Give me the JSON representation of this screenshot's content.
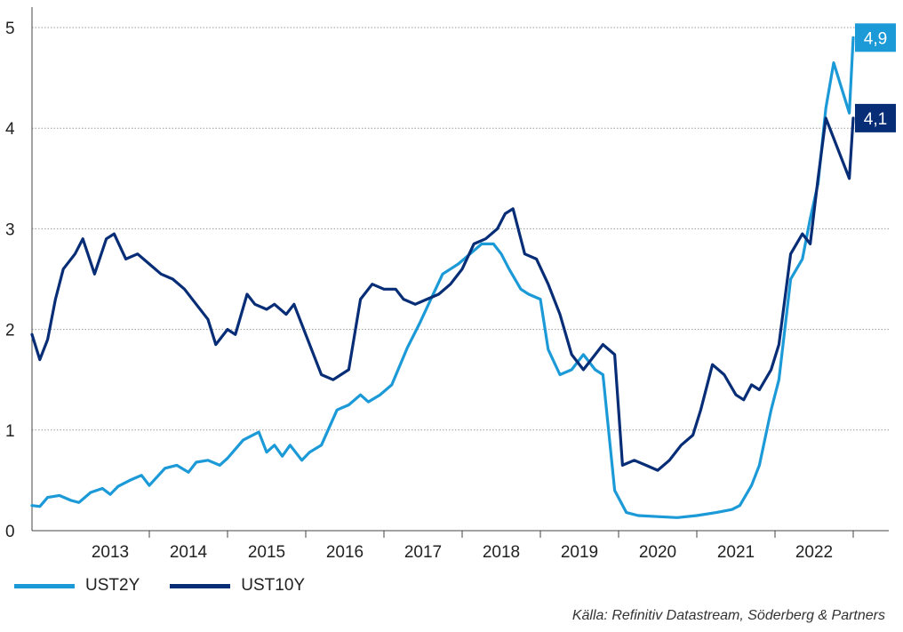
{
  "chart_data": {
    "type": "line",
    "ylim": [
      0,
      5
    ],
    "yticks": [
      "0",
      "1",
      "2",
      "3",
      "4",
      "5"
    ],
    "xticks": [
      "2013",
      "2014",
      "2015",
      "2016",
      "2017",
      "2018",
      "2019",
      "2020",
      "2021",
      "2022"
    ],
    "xlim": [
      2012.5,
      2023.0
    ],
    "grid": "horizontal dotted",
    "legend_position": "bottom-left",
    "series": [
      {
        "name": "UST2Y",
        "color": "#1b9ad7",
        "end_label": "4,9",
        "x": [
          2012.5,
          2012.6,
          2012.7,
          2012.85,
          2013.0,
          2013.1,
          2013.25,
          2013.4,
          2013.5,
          2013.6,
          2013.75,
          2013.9,
          2014.0,
          2014.2,
          2014.35,
          2014.5,
          2014.6,
          2014.75,
          2014.9,
          2015.0,
          2015.2,
          2015.4,
          2015.5,
          2015.6,
          2015.7,
          2015.8,
          2015.95,
          2016.05,
          2016.2,
          2016.4,
          2016.55,
          2016.7,
          2016.8,
          2016.95,
          2017.1,
          2017.3,
          2017.45,
          2017.6,
          2017.75,
          2017.95,
          2018.1,
          2018.25,
          2018.4,
          2018.5,
          2018.6,
          2018.75,
          2018.85,
          2019.0,
          2019.1,
          2019.25,
          2019.4,
          2019.55,
          2019.7,
          2019.8,
          2019.95,
          2020.1,
          2020.25,
          2020.5,
          2020.75,
          2021.0,
          2021.25,
          2021.45,
          2021.55,
          2021.7,
          2021.8,
          2021.95,
          2022.05,
          2022.2,
          2022.35,
          2022.45,
          2022.55,
          2022.65,
          2022.75,
          2022.85,
          2022.95,
          2023.0
        ],
        "values": [
          0.25,
          0.24,
          0.33,
          0.35,
          0.3,
          0.28,
          0.38,
          0.42,
          0.36,
          0.44,
          0.5,
          0.55,
          0.45,
          0.62,
          0.65,
          0.58,
          0.68,
          0.7,
          0.65,
          0.72,
          0.9,
          0.98,
          0.78,
          0.85,
          0.74,
          0.85,
          0.7,
          0.78,
          0.85,
          1.2,
          1.25,
          1.35,
          1.28,
          1.35,
          1.45,
          1.82,
          2.05,
          2.3,
          2.55,
          2.65,
          2.75,
          2.85,
          2.85,
          2.75,
          2.6,
          2.4,
          2.35,
          2.3,
          1.8,
          1.55,
          1.6,
          1.75,
          1.6,
          1.55,
          0.4,
          0.18,
          0.15,
          0.14,
          0.13,
          0.15,
          0.18,
          0.21,
          0.25,
          0.45,
          0.65,
          1.2,
          1.5,
          2.5,
          2.7,
          3.1,
          3.45,
          4.2,
          4.65,
          4.4,
          4.15,
          4.9
        ]
      },
      {
        "name": "UST10Y",
        "color": "#062d76",
        "end_label": "4,1",
        "x": [
          2012.5,
          2012.6,
          2012.7,
          2012.8,
          2012.9,
          2013.05,
          2013.15,
          2013.3,
          2013.45,
          2013.55,
          2013.7,
          2013.85,
          2014.0,
          2014.15,
          2014.3,
          2014.45,
          2014.6,
          2014.75,
          2014.85,
          2015.0,
          2015.1,
          2015.25,
          2015.35,
          2015.5,
          2015.6,
          2015.75,
          2015.85,
          2016.0,
          2016.1,
          2016.2,
          2016.35,
          2016.45,
          2016.55,
          2016.7,
          2016.85,
          2017.0,
          2017.15,
          2017.25,
          2017.4,
          2017.55,
          2017.7,
          2017.85,
          2018.0,
          2018.15,
          2018.3,
          2018.45,
          2018.55,
          2018.65,
          2018.8,
          2018.95,
          2019.1,
          2019.25,
          2019.4,
          2019.55,
          2019.65,
          2019.8,
          2019.95,
          2020.05,
          2020.2,
          2020.35,
          2020.5,
          2020.65,
          2020.8,
          2020.95,
          2021.05,
          2021.2,
          2021.35,
          2021.5,
          2021.6,
          2021.7,
          2021.8,
          2021.95,
          2022.05,
          2022.2,
          2022.35,
          2022.45,
          2022.55,
          2022.65,
          2022.75,
          2022.85,
          2022.95,
          2023.0
        ],
        "values": [
          1.95,
          1.7,
          1.9,
          2.3,
          2.6,
          2.75,
          2.9,
          2.55,
          2.9,
          2.95,
          2.7,
          2.75,
          2.65,
          2.55,
          2.5,
          2.4,
          2.25,
          2.1,
          1.85,
          2.0,
          1.95,
          2.35,
          2.25,
          2.2,
          2.25,
          2.15,
          2.25,
          1.95,
          1.75,
          1.55,
          1.5,
          1.55,
          1.6,
          2.3,
          2.45,
          2.4,
          2.4,
          2.3,
          2.25,
          2.3,
          2.35,
          2.45,
          2.6,
          2.85,
          2.9,
          3.0,
          3.15,
          3.2,
          2.75,
          2.7,
          2.45,
          2.15,
          1.75,
          1.6,
          1.7,
          1.85,
          1.75,
          0.65,
          0.7,
          0.65,
          0.6,
          0.7,
          0.85,
          0.95,
          1.2,
          1.65,
          1.55,
          1.35,
          1.3,
          1.45,
          1.4,
          1.6,
          1.85,
          2.75,
          2.95,
          2.85,
          3.5,
          4.1,
          3.9,
          3.7,
          3.5,
          4.1
        ]
      }
    ],
    "legend": [
      {
        "label": "UST2Y",
        "color": "#1b9ad7"
      },
      {
        "label": "UST10Y",
        "color": "#062d76"
      }
    ]
  },
  "source": "Källa: Refinitiv Datastream, Söderberg & Partners"
}
